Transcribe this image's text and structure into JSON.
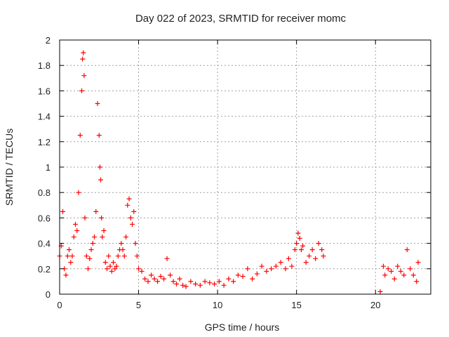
{
  "chart_data": {
    "type": "scatter",
    "title": "Day 022 of 2023, SRMTID for receiver momc",
    "xlabel": "GPS time / hours",
    "ylabel": "SRMTID / TECUs",
    "xlim": [
      0,
      23.5
    ],
    "ylim": [
      0,
      2
    ],
    "xticks": [
      0,
      5,
      10,
      15,
      20
    ],
    "xtick_labels": [
      "0",
      "5",
      "10",
      "15",
      "20"
    ],
    "yticks": [
      0,
      0.2,
      0.4,
      0.6,
      0.8,
      1,
      1.2,
      1.4,
      1.6,
      1.8,
      2
    ],
    "ytick_labels": [
      "0",
      "0.2",
      "0.4",
      "0.6",
      "0.8",
      "1",
      "1.2",
      "1.4",
      "1.6",
      "1.8",
      "2"
    ],
    "grid": true,
    "marker": "+",
    "color": "#ff0000",
    "series": [
      {
        "name": "SRMTID",
        "x": [
          0.0,
          0.1,
          0.2,
          0.3,
          0.4,
          0.5,
          0.6,
          0.7,
          0.8,
          0.9,
          1.0,
          1.1,
          1.2,
          1.3,
          1.4,
          1.45,
          1.5,
          1.55,
          1.6,
          1.7,
          1.8,
          1.9,
          2.0,
          2.1,
          2.2,
          2.3,
          2.4,
          2.5,
          2.55,
          2.6,
          2.65,
          2.7,
          2.8,
          2.9,
          3.0,
          3.1,
          3.2,
          3.3,
          3.4,
          3.5,
          3.6,
          3.7,
          3.8,
          3.9,
          4.0,
          4.1,
          4.2,
          4.3,
          4.4,
          4.5,
          4.6,
          4.7,
          4.8,
          4.9,
          5.0,
          5.2,
          5.4,
          5.6,
          5.8,
          6.0,
          6.2,
          6.4,
          6.6,
          6.8,
          7.0,
          7.2,
          7.4,
          7.6,
          7.8,
          8.0,
          8.3,
          8.6,
          8.9,
          9.2,
          9.5,
          9.8,
          10.1,
          10.4,
          10.7,
          11.0,
          11.3,
          11.6,
          11.9,
          12.2,
          12.5,
          12.8,
          13.1,
          13.4,
          13.7,
          14.0,
          14.3,
          14.5,
          14.7,
          14.9,
          15.0,
          15.1,
          15.2,
          15.3,
          15.4,
          15.6,
          15.8,
          16.0,
          16.2,
          16.4,
          16.6,
          16.7,
          20.3,
          20.5,
          20.6,
          20.8,
          21.0,
          21.2,
          21.4,
          21.6,
          21.8,
          22.0,
          22.2,
          22.4,
          22.6,
          22.7
        ],
        "y": [
          0.3,
          0.38,
          0.65,
          0.2,
          0.15,
          0.3,
          0.35,
          0.25,
          0.3,
          0.45,
          0.55,
          0.5,
          0.8,
          1.25,
          1.6,
          1.85,
          1.9,
          1.72,
          0.6,
          0.3,
          0.2,
          0.28,
          0.35,
          0.4,
          0.45,
          0.65,
          1.5,
          1.25,
          1.0,
          0.9,
          0.6,
          0.45,
          0.5,
          0.25,
          0.2,
          0.3,
          0.22,
          0.18,
          0.25,
          0.2,
          0.22,
          0.3,
          0.35,
          0.4,
          0.35,
          0.3,
          0.45,
          0.7,
          0.75,
          0.6,
          0.55,
          0.65,
          0.4,
          0.3,
          0.2,
          0.18,
          0.12,
          0.1,
          0.15,
          0.12,
          0.1,
          0.14,
          0.12,
          0.28,
          0.15,
          0.1,
          0.08,
          0.12,
          0.07,
          0.06,
          0.1,
          0.08,
          0.07,
          0.1,
          0.09,
          0.08,
          0.1,
          0.07,
          0.12,
          0.1,
          0.15,
          0.14,
          0.2,
          0.12,
          0.16,
          0.22,
          0.18,
          0.2,
          0.22,
          0.25,
          0.2,
          0.28,
          0.22,
          0.35,
          0.4,
          0.48,
          0.44,
          0.35,
          0.38,
          0.25,
          0.3,
          0.35,
          0.28,
          0.4,
          0.35,
          0.3,
          0.02,
          0.22,
          0.15,
          0.2,
          0.18,
          0.12,
          0.22,
          0.18,
          0.15,
          0.35,
          0.2,
          0.15,
          0.1,
          0.25
        ]
      }
    ]
  }
}
